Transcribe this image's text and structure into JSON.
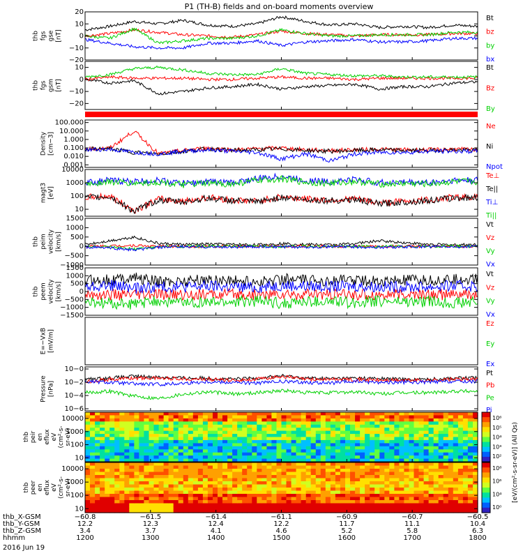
{
  "title": "P1 (TH-B) fields and on-board moments overview",
  "colors": {
    "black": "#000000",
    "red": "#ff0000",
    "green": "#00d000",
    "blue": "#0000ff"
  },
  "chart_data": {
    "type": "line",
    "time_range_hhmm": [
      "1200",
      "1800"
    ],
    "panels": [
      {
        "id": "fgs_gse",
        "ylabel": [
          "thb",
          "fgs",
          "gse",
          "[nT]"
        ],
        "ylim": [
          -20,
          20
        ],
        "yticks": [
          "20",
          "10",
          "0",
          "−10",
          "−20"
        ],
        "series": [
          {
            "name": "Bt",
            "color": "#000000",
            "values": [
              5,
              8,
              12,
              10,
              13,
              9,
              8,
              10,
              16,
              12,
              9,
              10,
              7,
              8,
              7,
              9,
              8
            ]
          },
          {
            "name": "bz",
            "color": "#ff0000",
            "values": [
              0,
              2,
              5,
              3,
              1,
              0,
              -1,
              1,
              4,
              2,
              1,
              0,
              1,
              1,
              1,
              2,
              2
            ]
          },
          {
            "name": "by",
            "color": "#00d000",
            "values": [
              0,
              -2,
              6,
              -6,
              -4,
              -2,
              -2,
              0,
              5,
              2,
              0,
              0,
              1,
              1,
              1,
              3,
              3
            ]
          },
          {
            "name": "bx",
            "color": "#0000ff",
            "values": [
              -3,
              -6,
              -9,
              -10,
              -10,
              -6,
              -6,
              -4,
              -8,
              -5,
              -4,
              -3,
              -5,
              -5,
              -4,
              -2,
              -2
            ]
          }
        ]
      },
      {
        "id": "fgs_gsm",
        "ylabel": [
          "thb",
          "fgs",
          "gsm",
          "[nT]"
        ],
        "ylim": [
          -25,
          15
        ],
        "yticks": [
          "10",
          "0",
          "−10",
          "−20"
        ],
        "series": [
          {
            "name": "Bt",
            "color": "#000000",
            "values": [
              0,
              -3,
              -1,
              -12,
              -10,
              -7,
              -6,
              -4,
              -8,
              -6,
              -5,
              -4,
              -8,
              -6,
              -6,
              -3,
              -2
            ]
          },
          {
            "name": "Bz",
            "color": "#ff0000",
            "values": [
              0,
              2,
              1,
              1,
              1,
              0,
              0,
              1,
              2,
              1,
              1,
              0,
              1,
              1,
              1,
              1,
              1
            ]
          },
          {
            "name": "By",
            "color": "#00d000",
            "values": [
              2,
              4,
              9,
              10,
              8,
              5,
              4,
              4,
              9,
              5,
              4,
              3,
              3,
              2,
              2,
              2,
              2
            ]
          }
        ]
      },
      {
        "id": "density",
        "ylabel": [
          "Density",
          "[cm−3]"
        ],
        "scale": "log",
        "ylim": [
          0.0005,
          200
        ],
        "yticks": [
          "100.000",
          "10.000",
          "1.000",
          "0.100",
          "0.010",
          "0.001"
        ],
        "series": [
          {
            "name": "Ne",
            "color": "#ff0000",
            "values": [
              0.08,
              0.09,
              10,
              0.02,
              0.05,
              0.1,
              0.06,
              0.08,
              0.1,
              0.06,
              0.05,
              0.06,
              0.07,
              0.06,
              0.06,
              0.07,
              0.06
            ]
          },
          {
            "name": "Ni",
            "color": "#000000",
            "values": [
              0.07,
              0.08,
              0.03,
              0.02,
              0.04,
              0.08,
              0.05,
              0.06,
              0.08,
              0.05,
              0.04,
              0.05,
              0.06,
              0.05,
              0.05,
              0.06,
              0.05
            ]
          },
          {
            "name": "Npot",
            "color": "#0000ff",
            "values": [
              0.06,
              0.07,
              0.03,
              0.02,
              0.04,
              0.06,
              0.04,
              0.03,
              0.005,
              0.02,
              0.003,
              0.02,
              0.03,
              0.03,
              0.04,
              0.04,
              0.04
            ]
          }
        ]
      },
      {
        "id": "temperature",
        "ylabel": [
          "magt3",
          "[eV]"
        ],
        "scale": "log",
        "ylim": [
          3,
          10000
        ],
        "yticks": [
          "10000",
          "1000",
          "100",
          "10"
        ],
        "series": [
          {
            "name": "Te⊥",
            "color": "#ff0000",
            "values": [
              80,
              100,
              8,
              60,
              40,
              80,
              50,
              40,
              90,
              60,
              50,
              60,
              30,
              40,
              50,
              80,
              90
            ]
          },
          {
            "name": "Te||",
            "color": "#000000",
            "values": [
              70,
              90,
              7,
              50,
              35,
              70,
              45,
              35,
              80,
              55,
              45,
              55,
              25,
              35,
              45,
              70,
              80
            ]
          },
          {
            "name": "Ti⊥",
            "color": "#0000ff",
            "values": [
              1000,
              1500,
              1200,
              1500,
              900,
              1200,
              1000,
              2000,
              3000,
              1500,
              1200,
              1800,
              1000,
              1100,
              1000,
              1500,
              1500
            ]
          },
          {
            "name": "Ti||",
            "color": "#00d000",
            "values": [
              800,
              1200,
              900,
              1100,
              700,
              900,
              800,
              1500,
              2000,
              1100,
              900,
              1300,
              800,
              900,
              800,
              1200,
              1200
            ]
          }
        ]
      },
      {
        "id": "peim_velocity",
        "ylabel": [
          "thb",
          "peim",
          "velocity",
          "[km/s]"
        ],
        "ylim": [
          -1000,
          1500
        ],
        "yticks": [
          "1500",
          "1000",
          "500",
          "0",
          "−500",
          "−1000"
        ],
        "series": [
          {
            "name": "Vt",
            "color": "#000000",
            "values": [
              100,
              300,
              500,
              150,
              100,
              120,
              100,
              80,
              150,
              100,
              80,
              150,
              300,
              200,
              100,
              80,
              100
            ]
          },
          {
            "name": "Vz",
            "color": "#ff0000",
            "values": [
              0,
              20,
              50,
              0,
              0,
              0,
              0,
              0,
              20,
              0,
              0,
              0,
              0,
              0,
              0,
              0,
              0
            ]
          },
          {
            "name": "Vy",
            "color": "#00d000",
            "values": [
              0,
              -50,
              -150,
              -30,
              0,
              0,
              0,
              0,
              0,
              0,
              0,
              0,
              0,
              0,
              0,
              0,
              0
            ]
          },
          {
            "name": "Vx",
            "color": "#0000ff",
            "values": [
              -30,
              -80,
              -200,
              -50,
              -20,
              -30,
              -30,
              -20,
              -40,
              -30,
              -20,
              -30,
              -50,
              -30,
              -20,
              -20,
              -20
            ]
          }
        ]
      },
      {
        "id": "peem_velocity",
        "ylabel": [
          "thb",
          "peem",
          "velocity",
          "[km/s]"
        ],
        "ylim": [
          -1500,
          1500
        ],
        "yticks": [
          "1500",
          "1000",
          "500",
          "0",
          "−500",
          "−1000",
          "−1500"
        ],
        "series": [
          {
            "name": "Vt",
            "color": "#000000",
            "values": [
              700,
              750,
              900,
              600,
              700,
              750,
              700,
              600,
              800,
              700,
              700,
              750,
              600,
              700,
              700,
              750,
              800
            ]
          },
          {
            "name": "Vz",
            "color": "#ff0000",
            "values": [
              -200,
              -200,
              -250,
              -200,
              -200,
              -200,
              -200,
              -200,
              -200,
              -200,
              -200,
              -200,
              -200,
              -200,
              -200,
              -200,
              -200
            ]
          },
          {
            "name": "Vy",
            "color": "#00d000",
            "values": [
              -700,
              -750,
              -800,
              -600,
              -700,
              -700,
              -650,
              -600,
              -750,
              -650,
              -650,
              -700,
              -600,
              -650,
              -650,
              -700,
              -700
            ]
          },
          {
            "name": "Vx",
            "color": "#0000ff",
            "values": [
              300,
              400,
              200,
              300,
              300,
              350,
              300,
              250,
              400,
              350,
              300,
              350,
              300,
              300,
              300,
              350,
              350
            ]
          }
        ]
      },
      {
        "id": "efield",
        "ylabel": [
          "E=−VxB",
          "[mV/m]"
        ],
        "ylim": [
          -1,
          1
        ],
        "yticks": [],
        "series": [
          {
            "name": "Ez",
            "color": "#ff0000",
            "values": []
          },
          {
            "name": "Ey",
            "color": "#00d000",
            "values": []
          },
          {
            "name": "Ex",
            "color": "#0000ff",
            "values": []
          }
        ]
      },
      {
        "id": "pressure",
        "ylabel": [
          "Pressure",
          "[nPa]"
        ],
        "scale": "log",
        "ylim": [
          1e-06,
          1
        ],
        "yticks": [
          "10−0",
          "10−2",
          "10−4",
          "10−6"
        ],
        "series": [
          {
            "name": "Pt",
            "color": "#000000",
            "values": [
              0.02,
              0.03,
              0.05,
              0.04,
              0.03,
              0.03,
              0.02,
              0.03,
              0.06,
              0.03,
              0.025,
              0.03,
              0.025,
              0.02,
              0.02,
              0.03,
              0.03
            ]
          },
          {
            "name": "Pb",
            "color": "#ff0000",
            "values": [
              0.01,
              0.02,
              0.03,
              0.03,
              0.025,
              0.02,
              0.015,
              0.02,
              0.05,
              0.02,
              0.02,
              0.02,
              0.015,
              0.015,
              0.015,
              0.02,
              0.02
            ]
          },
          {
            "name": "Pe",
            "color": "#00d000",
            "values": [
              0.0003,
              0.0005,
              0.0001,
              5e-05,
              0.0002,
              0.0004,
              0.0002,
              0.0003,
              0.0006,
              0.0003,
              0.0003,
              0.0004,
              0.0002,
              0.0003,
              0.0003,
              0.0005,
              0.0005
            ]
          },
          {
            "name": "Pi",
            "color": "#0000ff",
            "values": [
              0.01,
              0.008,
              0.005,
              0.004,
              0.006,
              0.01,
              0.008,
              0.006,
              0.01,
              0.008,
              0.006,
              0.01,
              0.008,
              0.008,
              0.008,
              0.01,
              0.01
            ]
          }
        ]
      },
      {
        "id": "peir_spec",
        "type": "heatmap",
        "ylabel": [
          "thb",
          "peir",
          "en",
          "eflux",
          "eV",
          "(cm²-s-",
          "sr-eV)"
        ],
        "yticks": [
          "10000",
          "1000",
          "100",
          "10"
        ],
        "colorbar_ticks": [
          "10⁶",
          "10⁵",
          "10⁴",
          "10³",
          "10²"
        ]
      },
      {
        "id": "peer_spec",
        "type": "heatmap",
        "ylabel": [
          "thb",
          "peer",
          "en",
          "eflux",
          "eV",
          "(cm²-s-",
          "sr-eV)"
        ],
        "yticks": [
          "10000",
          "1000",
          "100",
          "10"
        ],
        "colorbar_ticks": [
          "10⁸",
          "10⁶",
          "10⁴",
          "10⁰"
        ]
      }
    ],
    "colorbar_label": "[eV/(cm²-s-sr-eV)] (All Qs)",
    "x_axis": {
      "rows": [
        {
          "label": "thb_X-GSM",
          "values": [
            "−60.8",
            "−61.5",
            "−61.4",
            "−61.1",
            "−60.9",
            "−60.7",
            "−60.5"
          ]
        },
        {
          "label": "thb_Y-GSM",
          "values": [
            "12.2",
            "12.3",
            "12.4",
            "12.2",
            "11.7",
            "11.1",
            "10.4"
          ]
        },
        {
          "label": "thb_Z-GSM",
          "values": [
            "3.4",
            "3.7",
            "4.1",
            "4.6",
            "5.2",
            "5.8",
            "6.3"
          ]
        },
        {
          "label": "hhmm",
          "values": [
            "1200",
            "1300",
            "1400",
            "1500",
            "1600",
            "1700",
            "1800"
          ]
        }
      ],
      "date": "2016 Jun 19"
    }
  }
}
